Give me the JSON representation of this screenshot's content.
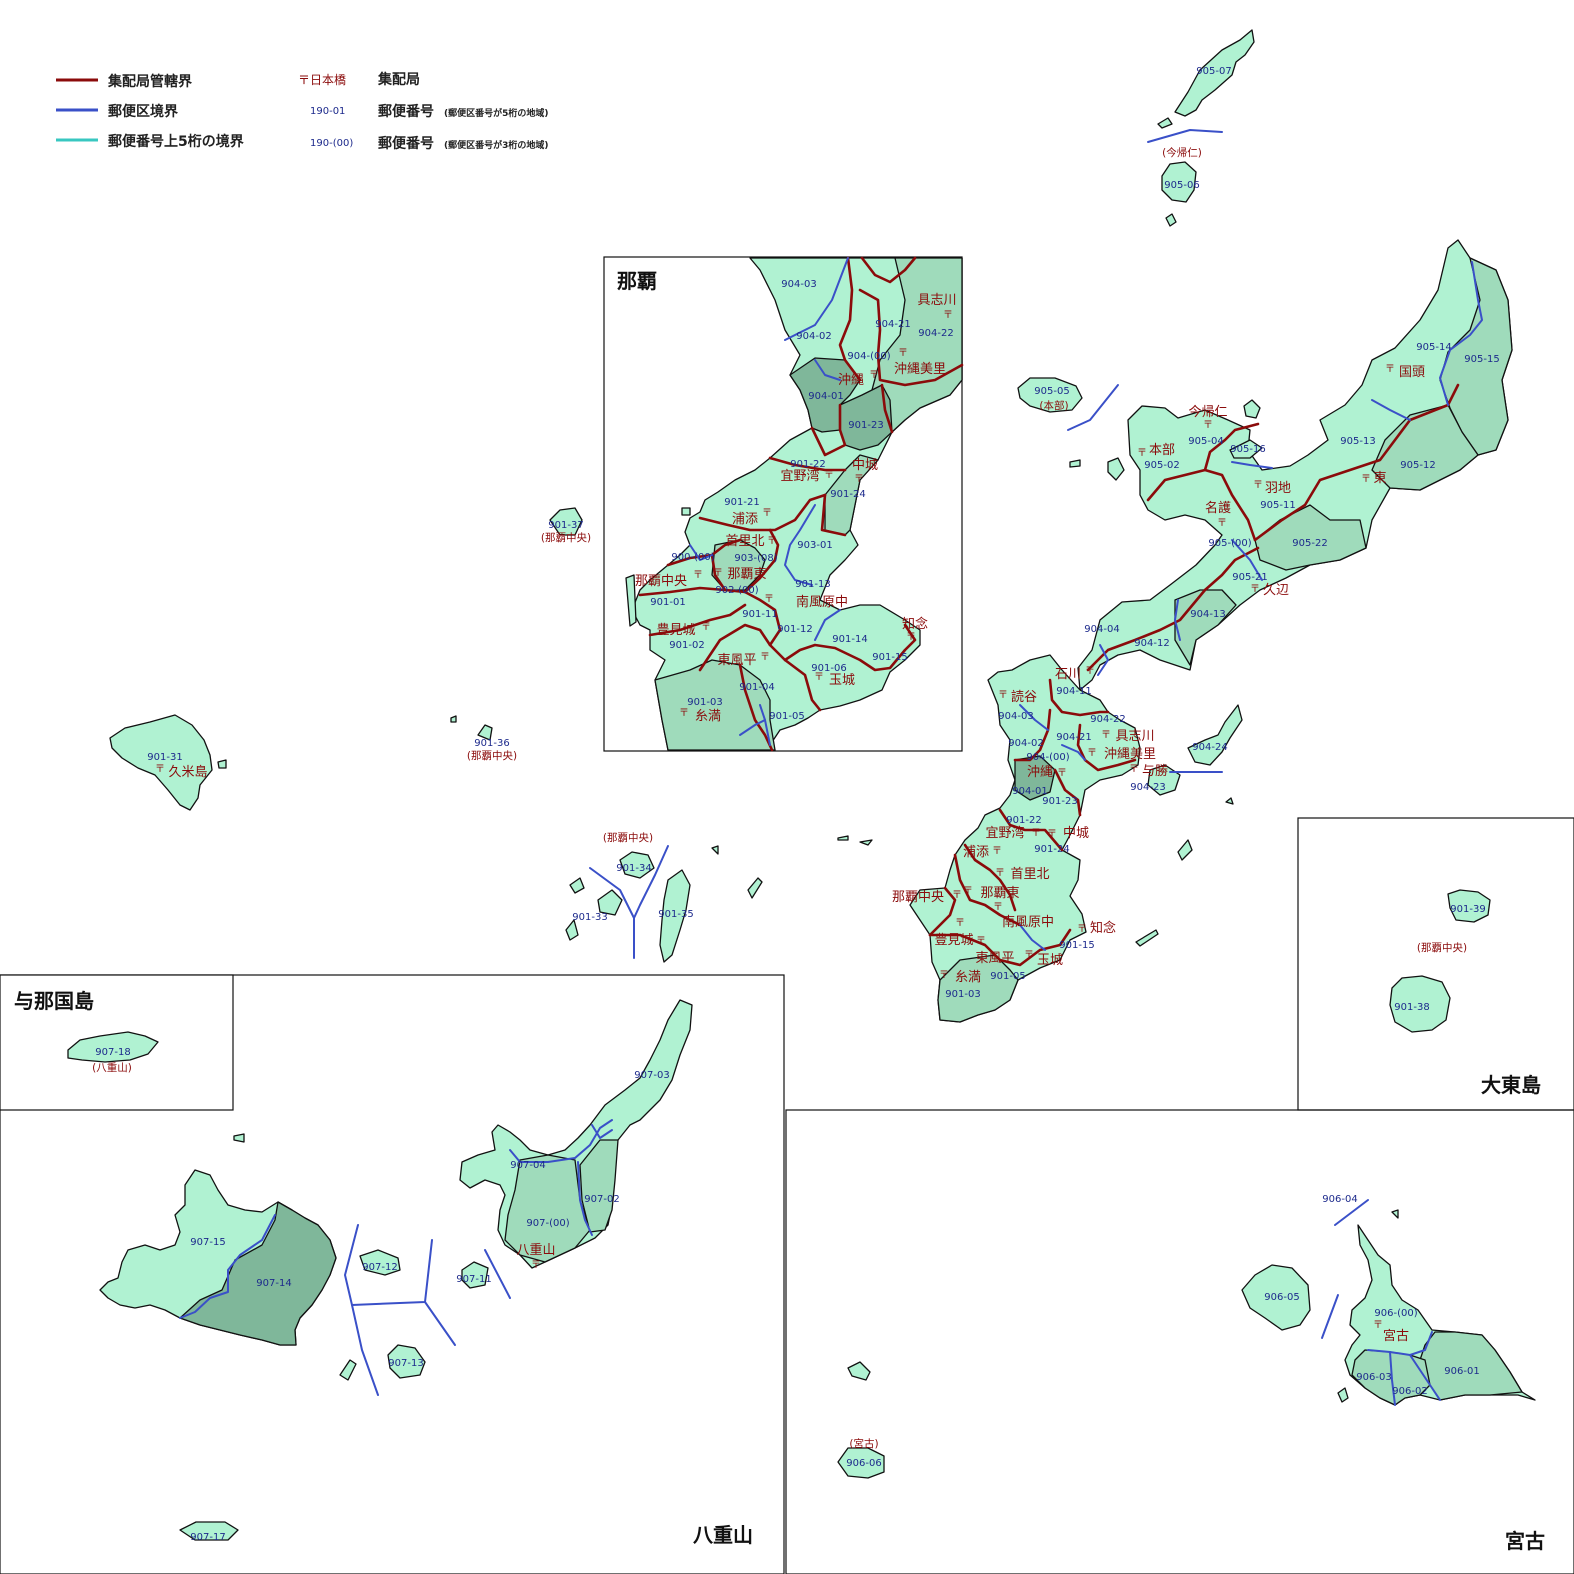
{
  "legend": {
    "office_boundary": "集配局管轄界",
    "zone_boundary": "郵便区境界",
    "upper5_boundary": "郵便番号上5桁の境界",
    "office_sample": "〒日本橋",
    "office_desc": "集配局",
    "zip5_sample": "190-01",
    "zip5_desc": "郵便番号",
    "zip5_note": "(郵便区番号が5桁の地域)",
    "zip3_sample": "190-(00)",
    "zip3_desc": "郵便番号",
    "zip3_note": "(郵便区番号が3桁の地域)",
    "colors": {
      "office": "#8b0b0b",
      "zone": "#3a50c8",
      "upper5": "#38c7c0",
      "land": "#b0f2d2"
    }
  },
  "regions": {
    "naha": "那覇",
    "yonaguni": "与那国島",
    "yaeyama": "八重山",
    "miyako": "宮古",
    "daito": "大東島"
  },
  "postmark": "〒",
  "offices": [
    {
      "id": "o1",
      "name": "今帰仁"
    },
    {
      "id": "o2",
      "name": "本部"
    },
    {
      "id": "o3",
      "name": "羽地"
    },
    {
      "id": "o4",
      "name": "名護"
    },
    {
      "id": "o5",
      "name": "東"
    },
    {
      "id": "o6",
      "name": "国頭"
    },
    {
      "id": "o7",
      "name": "久辺"
    },
    {
      "id": "o8",
      "name": "石川"
    },
    {
      "id": "o9",
      "name": "読谷"
    },
    {
      "id": "o10",
      "name": "具志川"
    },
    {
      "id": "o11",
      "name": "沖縄美里"
    },
    {
      "id": "o12",
      "name": "与勝"
    },
    {
      "id": "o13",
      "name": "沖縄"
    },
    {
      "id": "o14",
      "name": "宜野湾"
    },
    {
      "id": "o15",
      "name": "中城"
    },
    {
      "id": "o16",
      "name": "浦添"
    },
    {
      "id": "o17",
      "name": "首里北"
    },
    {
      "id": "o18",
      "name": "那覇中央"
    },
    {
      "id": "o19",
      "name": "那覇東"
    },
    {
      "id": "o20",
      "name": "南風原中"
    },
    {
      "id": "o21",
      "name": "知念"
    },
    {
      "id": "o22",
      "name": "豊見城"
    },
    {
      "id": "o23",
      "name": "東風平"
    },
    {
      "id": "o24",
      "name": "玉城"
    },
    {
      "id": "o25",
      "name": "糸満"
    },
    {
      "id": "o26",
      "name": "久米島"
    },
    {
      "id": "o27",
      "name": "八重山"
    },
    {
      "id": "o28",
      "name": "宮古"
    }
  ],
  "inset_offices": [
    {
      "id": "i1",
      "name": "具志川"
    },
    {
      "id": "i2",
      "name": "沖縄美里"
    },
    {
      "id": "i3",
      "name": "沖縄"
    },
    {
      "id": "i4",
      "name": "中城"
    },
    {
      "id": "i5",
      "name": "宜野湾"
    },
    {
      "id": "i6",
      "name": "浦添"
    },
    {
      "id": "i7",
      "name": "首里北"
    },
    {
      "id": "i8",
      "name": "那覇東"
    },
    {
      "id": "i9",
      "name": "那覇中央"
    },
    {
      "id": "i10",
      "name": "南風原中"
    },
    {
      "id": "i11",
      "name": "知念"
    },
    {
      "id": "i12",
      "name": "豊見城"
    },
    {
      "id": "i13",
      "name": "東風平"
    },
    {
      "id": "i14",
      "name": "玉城"
    },
    {
      "id": "i15",
      "name": "糸満"
    }
  ],
  "zips": [
    {
      "id": "z1",
      "code": "905-07"
    },
    {
      "id": "z2",
      "code": "905-06"
    },
    {
      "id": "z3",
      "code": "905-05"
    },
    {
      "id": "z4",
      "code": "905-04"
    },
    {
      "id": "z5",
      "code": "905-16"
    },
    {
      "id": "z6",
      "code": "905-02"
    },
    {
      "id": "z7",
      "code": "905-11"
    },
    {
      "id": "z8",
      "code": "905-14"
    },
    {
      "id": "z9",
      "code": "905-15"
    },
    {
      "id": "z10",
      "code": "905-13"
    },
    {
      "id": "z11",
      "code": "905-12"
    },
    {
      "id": "z12",
      "code": "905-(00)"
    },
    {
      "id": "z13",
      "code": "905-22"
    },
    {
      "id": "z14",
      "code": "905-21"
    },
    {
      "id": "z15",
      "code": "904-13"
    },
    {
      "id": "z16",
      "code": "904-04"
    },
    {
      "id": "z17",
      "code": "904-12"
    },
    {
      "id": "z18",
      "code": "904-11"
    },
    {
      "id": "z19",
      "code": "904-03"
    },
    {
      "id": "z20",
      "code": "904-22"
    },
    {
      "id": "z21",
      "code": "904-21"
    },
    {
      "id": "z22",
      "code": "904-02"
    },
    {
      "id": "z23",
      "code": "904-(00)"
    },
    {
      "id": "z24",
      "code": "904-24"
    },
    {
      "id": "z25",
      "code": "904-23"
    },
    {
      "id": "z26",
      "code": "904-01"
    },
    {
      "id": "z27",
      "code": "901-23"
    },
    {
      "id": "z28",
      "code": "901-22"
    },
    {
      "id": "z29",
      "code": "901-24"
    },
    {
      "id": "z30",
      "code": "901-15"
    },
    {
      "id": "z31",
      "code": "901-05"
    },
    {
      "id": "z32",
      "code": "901-03"
    },
    {
      "id": "z33",
      "code": "901-37"
    },
    {
      "id": "z34",
      "code": "901-31"
    },
    {
      "id": "z35",
      "code": "901-36"
    },
    {
      "id": "z36",
      "code": "901-34"
    },
    {
      "id": "z37",
      "code": "901-33"
    },
    {
      "id": "z38",
      "code": "901-35"
    },
    {
      "id": "z39",
      "code": "901-39"
    },
    {
      "id": "z40",
      "code": "901-38"
    },
    {
      "id": "z41",
      "code": "907-18"
    },
    {
      "id": "z42",
      "code": "907-03"
    },
    {
      "id": "z43",
      "code": "907-04"
    },
    {
      "id": "z44",
      "code": "907-02"
    },
    {
      "id": "z45",
      "code": "907-(00)"
    },
    {
      "id": "z46",
      "code": "907-15"
    },
    {
      "id": "z47",
      "code": "907-14"
    },
    {
      "id": "z48",
      "code": "907-12"
    },
    {
      "id": "z49",
      "code": "907-11"
    },
    {
      "id": "z50",
      "code": "907-13"
    },
    {
      "id": "z51",
      "code": "907-17"
    },
    {
      "id": "z52",
      "code": "906-04"
    },
    {
      "id": "z53",
      "code": "906-05"
    },
    {
      "id": "z54",
      "code": "906-(00)"
    },
    {
      "id": "z55",
      "code": "906-01"
    },
    {
      "id": "z56",
      "code": "906-03"
    },
    {
      "id": "z57",
      "code": "906-02"
    },
    {
      "id": "z58",
      "code": "906-06"
    }
  ],
  "inset_zips": [
    {
      "id": "n1",
      "code": "904-03"
    },
    {
      "id": "n2",
      "code": "904-21"
    },
    {
      "id": "n3",
      "code": "904-22"
    },
    {
      "id": "n4",
      "code": "904-02"
    },
    {
      "id": "n5",
      "code": "904-(00)"
    },
    {
      "id": "n6",
      "code": "904-01"
    },
    {
      "id": "n7",
      "code": "901-23"
    },
    {
      "id": "n8",
      "code": "901-22"
    },
    {
      "id": "n9",
      "code": "901-24"
    },
    {
      "id": "n10",
      "code": "901-21"
    },
    {
      "id": "n11",
      "code": "903-01"
    },
    {
      "id": "n12",
      "code": "900-(00)"
    },
    {
      "id": "n13",
      "code": "903-(08)"
    },
    {
      "id": "n14",
      "code": "902-(00)"
    },
    {
      "id": "n15",
      "code": "901-13"
    },
    {
      "id": "n16",
      "code": "901-01"
    },
    {
      "id": "n17",
      "code": "901-11"
    },
    {
      "id": "n18",
      "code": "901-12"
    },
    {
      "id": "n19",
      "code": "901-14"
    },
    {
      "id": "n20",
      "code": "901-02"
    },
    {
      "id": "n21",
      "code": "901-06"
    },
    {
      "id": "n22",
      "code": "901-15"
    },
    {
      "id": "n23",
      "code": "901-04"
    },
    {
      "id": "n24",
      "code": "901-03"
    },
    {
      "id": "n25",
      "code": "901-05"
    }
  ],
  "notes": [
    {
      "id": "t1",
      "text": "(今帰仁)"
    },
    {
      "id": "t2",
      "text": "(本部)"
    },
    {
      "id": "t3",
      "text": "(那覇中央)"
    },
    {
      "id": "t4",
      "text": "(那覇中央)"
    },
    {
      "id": "t5",
      "text": "(那覇中央)"
    },
    {
      "id": "t6",
      "text": "(那覇中央)"
    },
    {
      "id": "t7",
      "text": "(八重山)"
    },
    {
      "id": "t8",
      "text": "(宮古)"
    }
  ]
}
